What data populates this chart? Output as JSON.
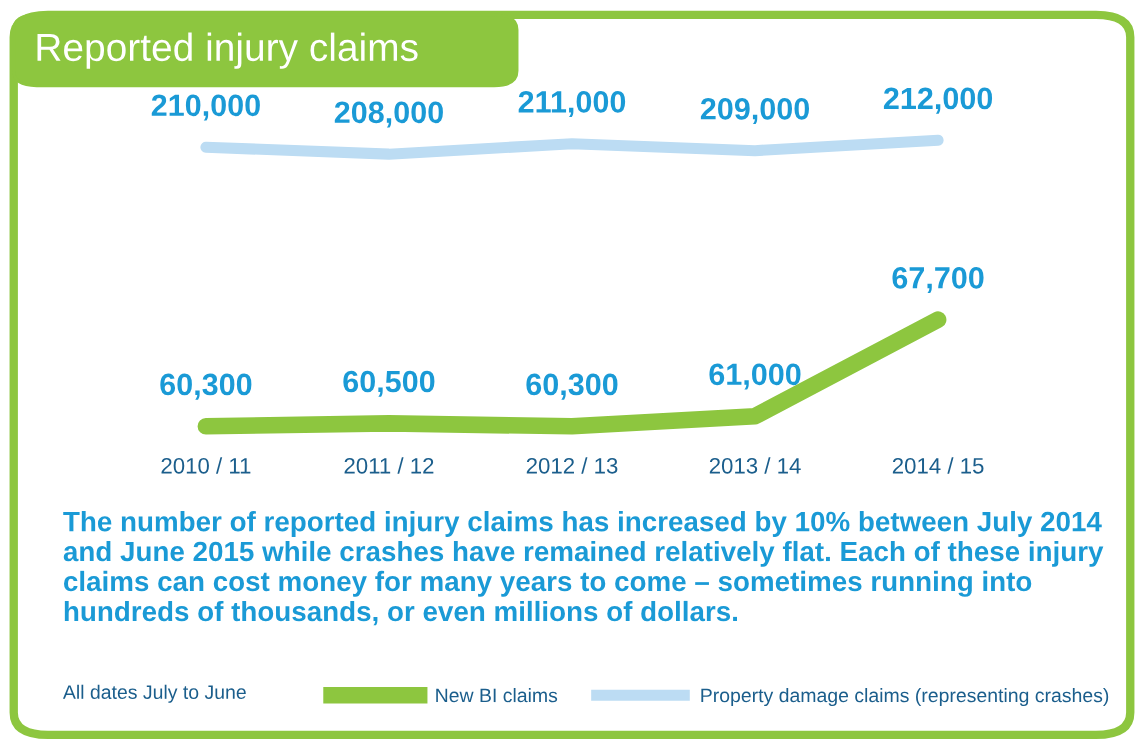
{
  "chart_data": [
    {
      "type": "line",
      "title": "Reported injury claims",
      "categories": [
        null,
        null,
        null,
        null,
        null
      ],
      "series": [
        {
          "name": "Property damage claims (representing crashes)",
          "color": "#bcdcf3",
          "values": [
            210000,
            208000,
            211000,
            209000,
            212000
          ],
          "value_labels": [
            "210,000",
            "208,000",
            "211,000",
            "209,000",
            "212,000"
          ]
        }
      ],
      "tick_labels": false,
      "grid": false,
      "legend": "bottom",
      "marker": "none",
      "line_style": "solid"
    },
    {
      "type": "line",
      "categories": [
        "2010 / 11",
        "2011 / 12",
        "2012 / 13",
        "2013 / 14",
        "2014 / 15"
      ],
      "series": [
        {
          "name": "New BI claims",
          "color": "#8dc63f",
          "values": [
            60300,
            60500,
            60300,
            61000,
            67700
          ],
          "value_labels": [
            "60,300",
            "60,500",
            "60,300",
            "61,000",
            "67,700"
          ]
        }
      ],
      "tick_labels": "x",
      "grid": false,
      "legend": "bottom",
      "marker": "none",
      "line_style": "solid",
      "annotations": [
        "The number of reported injury claims has increased by 10% between July 2014 and June 2015 while crashes have remained relatively flat. Each of these injury claims can cost money for many years to come – sometimes running into hundreds of thousands, or even millions of dollars.",
        "All dates July to June"
      ]
    }
  ]
}
